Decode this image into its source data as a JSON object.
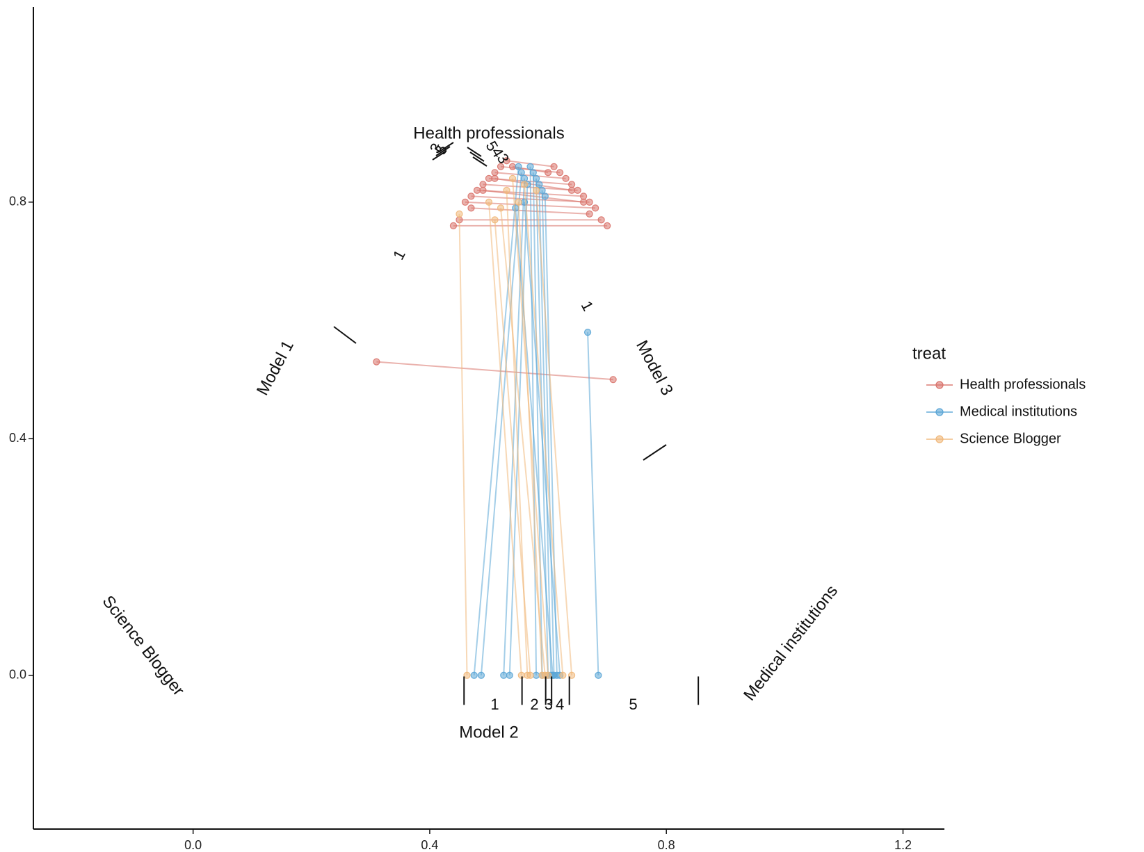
{
  "chart_data": {
    "type": "scatter",
    "subtype": "ternary-style segment plot",
    "xlim": [
      -0.27,
      1.27
    ],
    "ylim": [
      -0.26,
      1.13
    ],
    "x_ticks": [
      0.0,
      0.4,
      0.8,
      1.2
    ],
    "y_ticks": [
      0.0,
      0.4,
      0.8
    ],
    "x_tick_labels": [
      "0.0",
      "0.4",
      "0.8",
      "1.2"
    ],
    "y_tick_labels": [
      "0.0",
      "0.4",
      "0.8"
    ],
    "grid": false,
    "legend": {
      "title": "treat",
      "placement": "right",
      "entries": [
        {
          "name": "Health professionals",
          "color": "#d9726a"
        },
        {
          "name": "Medical institutions",
          "color": "#5aa5d6"
        },
        {
          "name": "Science Blogger",
          "color": "#f0b87a"
        }
      ]
    },
    "vertex_labels": {
      "top": "Health professionals",
      "bottom_left": "Science Blogger",
      "bottom_right": "Medical institutions"
    },
    "model_labels": {
      "left": "Model 1",
      "bottom": "Model 2",
      "right": "Model 3"
    },
    "model2_segment_labels": [
      {
        "text": "1",
        "x": 0.51
      },
      {
        "text": "2",
        "x": 0.577
      },
      {
        "text": "3",
        "x": 0.601
      },
      {
        "text": "4",
        "x": 0.62
      },
      {
        "text": "5",
        "x": 0.744
      }
    ],
    "model2_boundaries": [
      0.458,
      0.556,
      0.596,
      0.606,
      0.636,
      0.854
    ],
    "model1_labels": [
      {
        "text": "1",
        "x": 0.35,
        "y": 0.71
      }
    ],
    "model3_labels": [
      {
        "text": "1",
        "x": 0.715,
        "y": 0.59
      }
    ],
    "top_cluster_labels_left": [
      "3",
      "5"
    ],
    "top_cluster_labels_right": [
      "5",
      "4",
      "3"
    ],
    "series": [
      {
        "name": "Health professionals",
        "segments": [
          [
            [
              0.31,
              0.53
            ],
            [
              0.71,
              0.5
            ]
          ],
          [
            [
              0.44,
              0.76
            ],
            [
              0.7,
              0.76
            ]
          ],
          [
            [
              0.45,
              0.77
            ],
            [
              0.69,
              0.77
            ]
          ],
          [
            [
              0.46,
              0.8
            ],
            [
              0.68,
              0.79
            ]
          ],
          [
            [
              0.47,
              0.81
            ],
            [
              0.67,
              0.8
            ]
          ],
          [
            [
              0.48,
              0.82
            ],
            [
              0.66,
              0.81
            ]
          ],
          [
            [
              0.49,
              0.83
            ],
            [
              0.65,
              0.82
            ]
          ],
          [
            [
              0.5,
              0.84
            ],
            [
              0.64,
              0.83
            ]
          ],
          [
            [
              0.51,
              0.85
            ],
            [
              0.63,
              0.84
            ]
          ],
          [
            [
              0.52,
              0.86
            ],
            [
              0.62,
              0.85
            ]
          ],
          [
            [
              0.53,
              0.87
            ],
            [
              0.61,
              0.86
            ]
          ],
          [
            [
              0.54,
              0.86
            ],
            [
              0.6,
              0.85
            ]
          ],
          [
            [
              0.47,
              0.79
            ],
            [
              0.67,
              0.78
            ]
          ],
          [
            [
              0.49,
              0.82
            ],
            [
              0.66,
              0.8
            ]
          ],
          [
            [
              0.51,
              0.84
            ],
            [
              0.64,
              0.82
            ]
          ]
        ]
      },
      {
        "name": "Medical institutions",
        "segments": [
          [
            [
              0.667,
              0.58
            ],
            [
              0.685,
              0.0
            ]
          ],
          [
            [
              0.55,
              0.86
            ],
            [
              0.475,
              0.0
            ]
          ],
          [
            [
              0.555,
              0.85
            ],
            [
              0.487,
              0.0
            ]
          ],
          [
            [
              0.56,
              0.84
            ],
            [
              0.525,
              0.0
            ]
          ],
          [
            [
              0.565,
              0.83
            ],
            [
              0.535,
              0.0
            ]
          ],
          [
            [
              0.57,
              0.86
            ],
            [
              0.58,
              0.0
            ]
          ],
          [
            [
              0.575,
              0.85
            ],
            [
              0.59,
              0.0
            ]
          ],
          [
            [
              0.58,
              0.84
            ],
            [
              0.6,
              0.0
            ]
          ],
          [
            [
              0.585,
              0.83
            ],
            [
              0.605,
              0.0
            ]
          ],
          [
            [
              0.59,
              0.82
            ],
            [
              0.61,
              0.0
            ]
          ],
          [
            [
              0.595,
              0.81
            ],
            [
              0.615,
              0.0
            ]
          ],
          [
            [
              0.56,
              0.8
            ],
            [
              0.62,
              0.0
            ]
          ],
          [
            [
              0.545,
              0.79
            ],
            [
              0.608,
              0.0
            ]
          ]
        ]
      },
      {
        "name": "Science Blogger",
        "segments": [
          [
            [
              0.45,
              0.78
            ],
            [
              0.463,
              0.0
            ]
          ],
          [
            [
              0.5,
              0.8
            ],
            [
              0.555,
              0.0
            ]
          ],
          [
            [
              0.53,
              0.82
            ],
            [
              0.565,
              0.0
            ]
          ],
          [
            [
              0.52,
              0.79
            ],
            [
              0.595,
              0.0
            ]
          ],
          [
            [
              0.54,
              0.84
            ],
            [
              0.6,
              0.0
            ]
          ],
          [
            [
              0.56,
              0.83
            ],
            [
              0.625,
              0.0
            ]
          ],
          [
            [
              0.58,
              0.82
            ],
            [
              0.64,
              0.0
            ]
          ],
          [
            [
              0.55,
              0.8
            ],
            [
              0.59,
              0.0
            ]
          ],
          [
            [
              0.51,
              0.77
            ],
            [
              0.57,
              0.0
            ]
          ]
        ]
      }
    ]
  }
}
